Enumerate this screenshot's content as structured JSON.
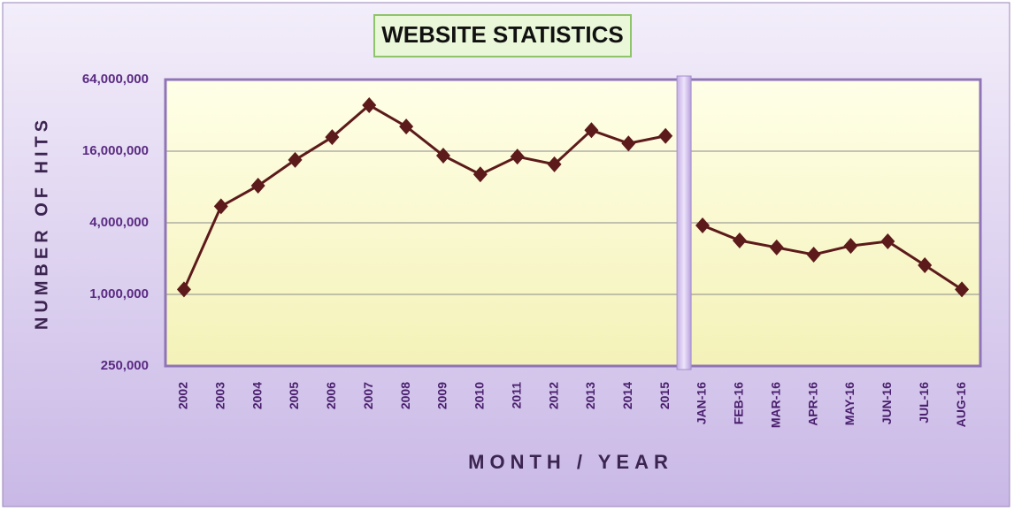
{
  "chart_data": {
    "type": "line",
    "title": "WEBSITE STATISTICS",
    "x_label": "MONTH / YEAR",
    "y_label": "NUMBER OF HITS",
    "categories": [
      "2002",
      "2003",
      "2004",
      "2005",
      "2006",
      "2007",
      "2008",
      "2009",
      "2010",
      "2011",
      "2012",
      "2013",
      "2014",
      "2015",
      "JAN-16",
      "FEB-16",
      "MAR-16",
      "APR-16",
      "MAY-16",
      "JUN-16",
      "JUL-16",
      "AUG-16"
    ],
    "series": [
      {
        "color": "#5c1a1a",
        "values": [
          1100000,
          5500000,
          8200000,
          13500000,
          21000000,
          39000000,
          25800000,
          14700000,
          10200000,
          14400000,
          12400000,
          24000000,
          18600000,
          21500000,
          null,
          null,
          null,
          null,
          null,
          null,
          null,
          null
        ]
      },
      {
        "color": "#5c1a1a",
        "values": [
          null,
          null,
          null,
          null,
          null,
          null,
          null,
          null,
          null,
          null,
          null,
          null,
          null,
          null,
          3800000,
          2840000,
          2480000,
          2160000,
          2560000,
          2790000,
          1760000,
          1100000
        ]
      }
    ],
    "yscale": "log",
    "ylim": [
      250000,
      64000000
    ],
    "yticks": [
      {
        "value": 250000,
        "label": "250,000"
      },
      {
        "value": 1000000,
        "label": "1,000,000"
      },
      {
        "value": 4000000,
        "label": "4,000,000"
      },
      {
        "value": 16000000,
        "label": "16,000,000"
      },
      {
        "value": 64000000,
        "label": "64,000,000"
      }
    ],
    "grid": true
  }
}
